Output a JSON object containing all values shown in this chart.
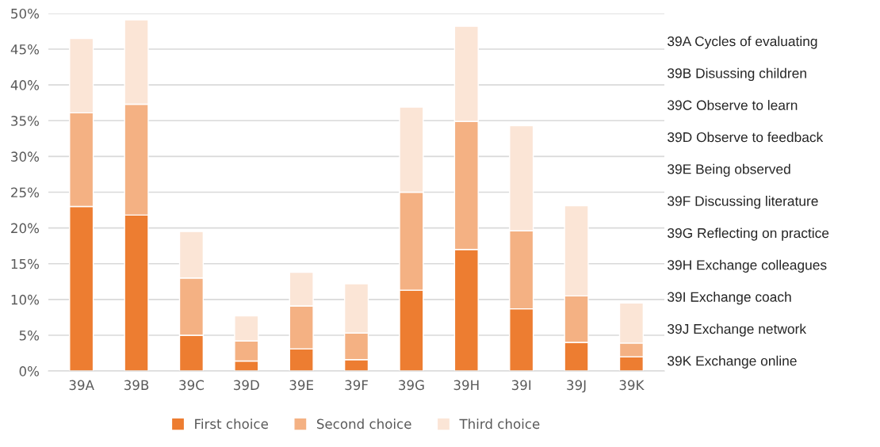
{
  "chart_data": {
    "type": "bar",
    "stacked": true,
    "categories": [
      "39A",
      "39B",
      "39C",
      "39D",
      "39E",
      "39F",
      "39G",
      "39H",
      "39I",
      "39J",
      "39K"
    ],
    "series": [
      {
        "name": "First choice",
        "color": "#ed7d31",
        "values": [
          23.0,
          21.8,
          5.0,
          1.4,
          3.1,
          1.6,
          11.3,
          17.0,
          8.7,
          4.0,
          2.0
        ]
      },
      {
        "name": "Second choice",
        "color": "#f4b183",
        "values": [
          13.1,
          15.5,
          8.0,
          2.8,
          6.0,
          3.7,
          13.7,
          17.9,
          10.9,
          6.5,
          1.9
        ]
      },
      {
        "name": "Third choice",
        "color": "#fbe5d6",
        "values": [
          10.4,
          11.8,
          6.5,
          3.5,
          4.7,
          6.9,
          11.9,
          13.3,
          14.7,
          12.6,
          5.6
        ]
      }
    ],
    "ylim": [
      0,
      50
    ],
    "yticks": [
      {
        "value": 0,
        "label": "0%"
      },
      {
        "value": 5,
        "label": "5%"
      },
      {
        "value": 10,
        "label": "10%"
      },
      {
        "value": 15,
        "label": "15%"
      },
      {
        "value": 20,
        "label": "20%"
      },
      {
        "value": 25,
        "label": "25%"
      },
      {
        "value": 30,
        "label": "30%"
      },
      {
        "value": 35,
        "label": "35%"
      },
      {
        "value": 40,
        "label": "40%"
      },
      {
        "value": 45,
        "label": "45%"
      },
      {
        "value": 50,
        "label": "50%"
      }
    ],
    "grid": "y",
    "legend": "bottom",
    "annotations": [
      "39A Cycles of evaluating",
      "39B Disussing children",
      "39C Observe to learn",
      "39D Observe to feedback",
      "39E Being observed",
      "39F Discussing literature",
      "39G Reflecting on practice",
      "39H Exchange colleagues",
      "39I Exchange coach",
      "39J Exchange network",
      "39K Exchange online"
    ]
  }
}
